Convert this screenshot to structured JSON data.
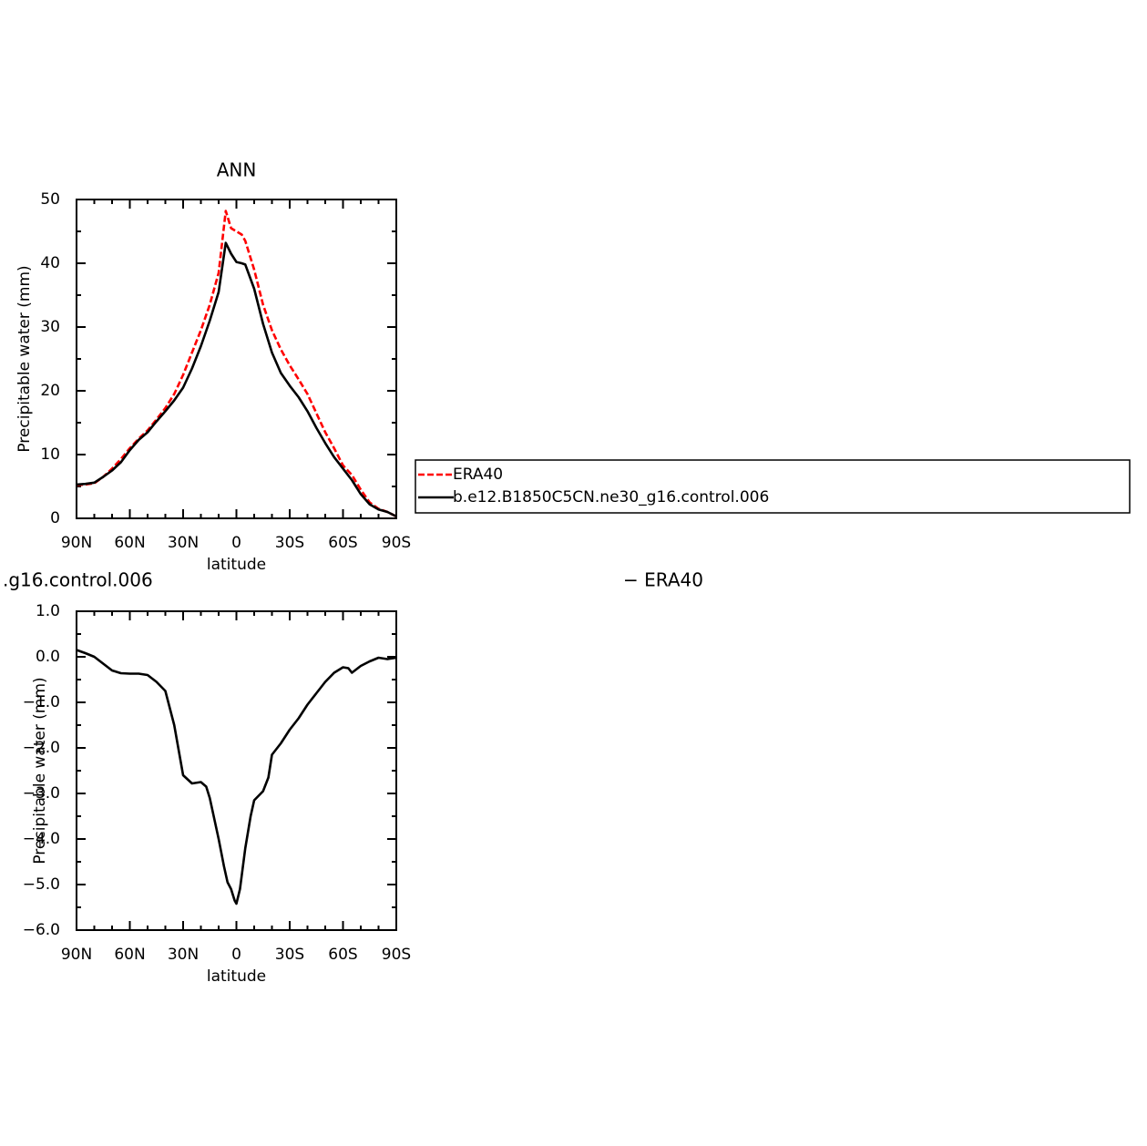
{
  "chart_data": [
    {
      "type": "line",
      "title": "ANN",
      "xlabel": "latitude",
      "ylabel": "Precipitable water (mm)",
      "x": [
        90,
        85,
        80,
        75,
        70,
        65,
        60,
        55,
        50,
        45,
        40,
        35,
        30,
        25,
        20,
        15,
        10,
        6,
        3,
        0,
        -3,
        -5,
        -10,
        -15,
        -20,
        -25,
        -30,
        -35,
        -40,
        -45,
        -50,
        -55,
        -60,
        -65,
        -70,
        -75,
        -80,
        -85,
        -90
      ],
      "series": [
        {
          "name": "ERA40",
          "color": "#ff0000",
          "dash": true,
          "values": [
            5.2,
            5.3,
            5.5,
            6.5,
            7.8,
            9.3,
            11.0,
            12.5,
            13.8,
            15.5,
            17.3,
            19.5,
            22.5,
            26.0,
            29.5,
            33.5,
            38.5,
            48.2,
            45.5,
            45.0,
            44.5,
            43.5,
            39.0,
            33.5,
            29.5,
            26.5,
            24.0,
            21.8,
            19.5,
            16.5,
            13.5,
            11.0,
            8.3,
            6.8,
            4.5,
            2.5,
            1.5,
            1.0,
            0.3
          ]
        },
        {
          "name": "b.e12.B1850C5CN.ne30_g16.control.006",
          "color": "#000000",
          "dash": false,
          "values": [
            5.3,
            5.4,
            5.6,
            6.5,
            7.5,
            8.8,
            10.7,
            12.3,
            13.5,
            15.2,
            16.8,
            18.5,
            20.5,
            23.5,
            27.0,
            31.0,
            35.5,
            43.2,
            41.5,
            40.2,
            40.0,
            39.8,
            36.0,
            30.5,
            26.0,
            22.8,
            20.8,
            19.0,
            16.8,
            14.2,
            11.8,
            9.6,
            7.8,
            6.0,
            3.8,
            2.2,
            1.4,
            1.0,
            0.3
          ]
        }
      ],
      "xlim": [
        90,
        -90
      ],
      "xticks": [
        {
          "value": 90,
          "label": "90N"
        },
        {
          "value": 60,
          "label": "60N"
        },
        {
          "value": 30,
          "label": "30N"
        },
        0,
        {
          "value": -30,
          "label": "30S"
        },
        {
          "value": -60,
          "label": "60S"
        },
        {
          "value": -90,
          "label": "90S"
        }
      ],
      "ylim": [
        0,
        50
      ],
      "yticks": [
        0,
        10,
        20,
        30,
        40,
        50
      ],
      "legend": "right"
    },
    {
      "type": "line",
      "title_parts": [
        ".g16.control.006",
        "− ERA40"
      ],
      "xlabel": "latitude",
      "ylabel": "Precipitable water (mm)",
      "x": [
        90,
        85,
        80,
        75,
        70,
        65,
        60,
        55,
        50,
        45,
        40,
        35,
        30,
        25,
        20,
        17,
        15,
        10,
        7,
        5,
        3,
        1,
        0,
        -2,
        -5,
        -8,
        -10,
        -15,
        -18,
        -20,
        -25,
        -30,
        -35,
        -40,
        -45,
        -50,
        -55,
        -60,
        -63,
        -65,
        -70,
        -75,
        -80,
        -85,
        -90
      ],
      "series": [
        {
          "color": "#000000",
          "dash": false,
          "values": [
            0.15,
            0.08,
            0.0,
            -0.15,
            -0.3,
            -0.36,
            -0.37,
            -0.37,
            -0.4,
            -0.55,
            -0.75,
            -1.5,
            -2.6,
            -2.78,
            -2.75,
            -2.85,
            -3.1,
            -4.0,
            -4.6,
            -4.95,
            -5.1,
            -5.35,
            -5.42,
            -5.1,
            -4.2,
            -3.5,
            -3.15,
            -2.95,
            -2.65,
            -2.15,
            -1.9,
            -1.6,
            -1.35,
            -1.05,
            -0.8,
            -0.55,
            -0.35,
            -0.23,
            -0.25,
            -0.35,
            -0.2,
            -0.1,
            -0.02,
            -0.05,
            -0.02
          ]
        }
      ],
      "xlim": [
        90,
        -90
      ],
      "xticks": [
        {
          "value": 90,
          "label": "90N"
        },
        {
          "value": 60,
          "label": "60N"
        },
        {
          "value": 30,
          "label": "30N"
        },
        0,
        {
          "value": -30,
          "label": "30S"
        },
        {
          "value": -60,
          "label": "60S"
        },
        {
          "value": -90,
          "label": "90S"
        }
      ],
      "ylim": [
        -6,
        1
      ],
      "yticks": [
        {
          "value": -6,
          "label": "−6.0"
        },
        {
          "value": -5,
          "label": "−5.0"
        },
        {
          "value": -4,
          "label": "−4.0"
        },
        {
          "value": -3,
          "label": "−3.0"
        },
        {
          "value": -2,
          "label": "−2.0"
        },
        {
          "value": -1,
          "label": "−1.0"
        },
        {
          "value": 0,
          "label": "0.0"
        },
        {
          "value": 1,
          "label": "1.0"
        }
      ]
    }
  ]
}
